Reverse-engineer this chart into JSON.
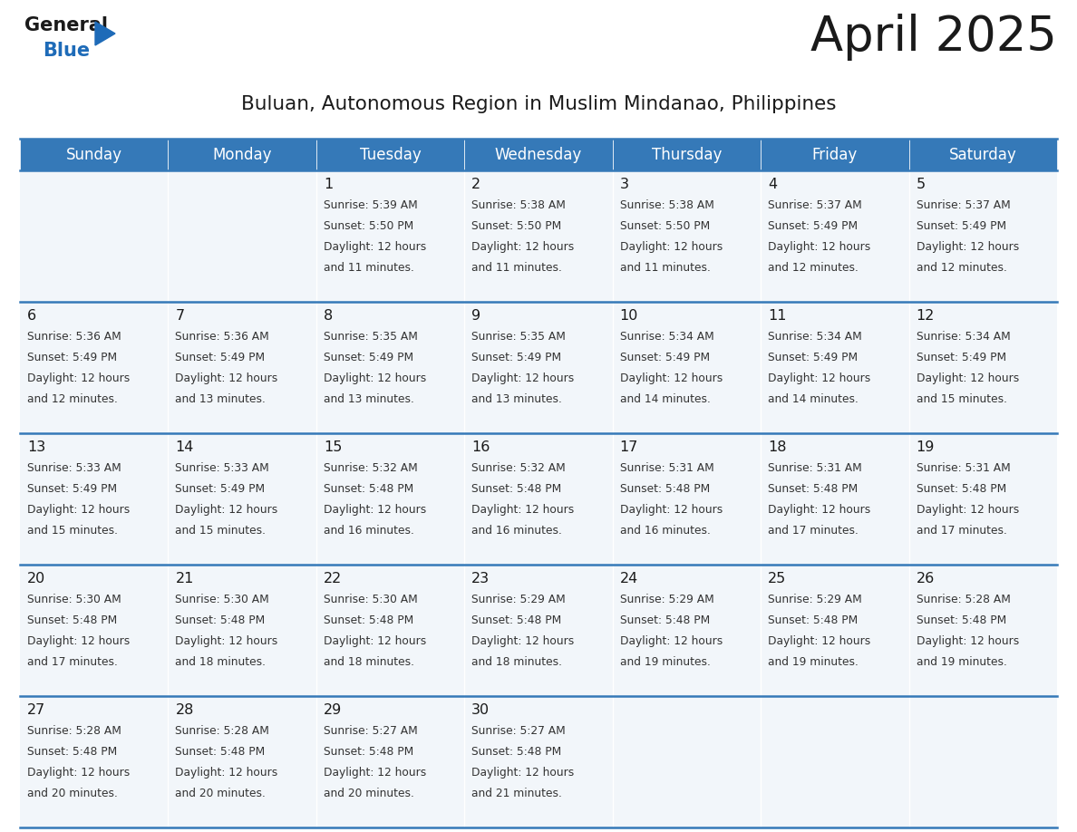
{
  "title": "April 2025",
  "subtitle": "Buluan, Autonomous Region in Muslim Mindanao, Philippines",
  "days_of_week": [
    "Sunday",
    "Monday",
    "Tuesday",
    "Wednesday",
    "Thursday",
    "Friday",
    "Saturday"
  ],
  "header_bg_color": "#3579b8",
  "header_text_color": "#ffffff",
  "cell_bg": "#f2f6fa",
  "row_line_color": "#3579b8",
  "title_color": "#1a1a1a",
  "subtitle_color": "#1a1a1a",
  "day_number_color": "#1a1a1a",
  "cell_text_color": "#333333",
  "logo_general_color": "#1a1a1a",
  "logo_blue_color": "#1e6bb8",
  "calendar_data": [
    {
      "day": 1,
      "col": 2,
      "row": 0,
      "sunrise": "5:39 AM",
      "sunset": "5:50 PM",
      "daylight_hours": 12,
      "daylight_minutes": 11
    },
    {
      "day": 2,
      "col": 3,
      "row": 0,
      "sunrise": "5:38 AM",
      "sunset": "5:50 PM",
      "daylight_hours": 12,
      "daylight_minutes": 11
    },
    {
      "day": 3,
      "col": 4,
      "row": 0,
      "sunrise": "5:38 AM",
      "sunset": "5:50 PM",
      "daylight_hours": 12,
      "daylight_minutes": 11
    },
    {
      "day": 4,
      "col": 5,
      "row": 0,
      "sunrise": "5:37 AM",
      "sunset": "5:49 PM",
      "daylight_hours": 12,
      "daylight_minutes": 12
    },
    {
      "day": 5,
      "col": 6,
      "row": 0,
      "sunrise": "5:37 AM",
      "sunset": "5:49 PM",
      "daylight_hours": 12,
      "daylight_minutes": 12
    },
    {
      "day": 6,
      "col": 0,
      "row": 1,
      "sunrise": "5:36 AM",
      "sunset": "5:49 PM",
      "daylight_hours": 12,
      "daylight_minutes": 12
    },
    {
      "day": 7,
      "col": 1,
      "row": 1,
      "sunrise": "5:36 AM",
      "sunset": "5:49 PM",
      "daylight_hours": 12,
      "daylight_minutes": 13
    },
    {
      "day": 8,
      "col": 2,
      "row": 1,
      "sunrise": "5:35 AM",
      "sunset": "5:49 PM",
      "daylight_hours": 12,
      "daylight_minutes": 13
    },
    {
      "day": 9,
      "col": 3,
      "row": 1,
      "sunrise": "5:35 AM",
      "sunset": "5:49 PM",
      "daylight_hours": 12,
      "daylight_minutes": 13
    },
    {
      "day": 10,
      "col": 4,
      "row": 1,
      "sunrise": "5:34 AM",
      "sunset": "5:49 PM",
      "daylight_hours": 12,
      "daylight_minutes": 14
    },
    {
      "day": 11,
      "col": 5,
      "row": 1,
      "sunrise": "5:34 AM",
      "sunset": "5:49 PM",
      "daylight_hours": 12,
      "daylight_minutes": 14
    },
    {
      "day": 12,
      "col": 6,
      "row": 1,
      "sunrise": "5:34 AM",
      "sunset": "5:49 PM",
      "daylight_hours": 12,
      "daylight_minutes": 15
    },
    {
      "day": 13,
      "col": 0,
      "row": 2,
      "sunrise": "5:33 AM",
      "sunset": "5:49 PM",
      "daylight_hours": 12,
      "daylight_minutes": 15
    },
    {
      "day": 14,
      "col": 1,
      "row": 2,
      "sunrise": "5:33 AM",
      "sunset": "5:49 PM",
      "daylight_hours": 12,
      "daylight_minutes": 15
    },
    {
      "day": 15,
      "col": 2,
      "row": 2,
      "sunrise": "5:32 AM",
      "sunset": "5:48 PM",
      "daylight_hours": 12,
      "daylight_minutes": 16
    },
    {
      "day": 16,
      "col": 3,
      "row": 2,
      "sunrise": "5:32 AM",
      "sunset": "5:48 PM",
      "daylight_hours": 12,
      "daylight_minutes": 16
    },
    {
      "day": 17,
      "col": 4,
      "row": 2,
      "sunrise": "5:31 AM",
      "sunset": "5:48 PM",
      "daylight_hours": 12,
      "daylight_minutes": 16
    },
    {
      "day": 18,
      "col": 5,
      "row": 2,
      "sunrise": "5:31 AM",
      "sunset": "5:48 PM",
      "daylight_hours": 12,
      "daylight_minutes": 17
    },
    {
      "day": 19,
      "col": 6,
      "row": 2,
      "sunrise": "5:31 AM",
      "sunset": "5:48 PM",
      "daylight_hours": 12,
      "daylight_minutes": 17
    },
    {
      "day": 20,
      "col": 0,
      "row": 3,
      "sunrise": "5:30 AM",
      "sunset": "5:48 PM",
      "daylight_hours": 12,
      "daylight_minutes": 17
    },
    {
      "day": 21,
      "col": 1,
      "row": 3,
      "sunrise": "5:30 AM",
      "sunset": "5:48 PM",
      "daylight_hours": 12,
      "daylight_minutes": 18
    },
    {
      "day": 22,
      "col": 2,
      "row": 3,
      "sunrise": "5:30 AM",
      "sunset": "5:48 PM",
      "daylight_hours": 12,
      "daylight_minutes": 18
    },
    {
      "day": 23,
      "col": 3,
      "row": 3,
      "sunrise": "5:29 AM",
      "sunset": "5:48 PM",
      "daylight_hours": 12,
      "daylight_minutes": 18
    },
    {
      "day": 24,
      "col": 4,
      "row": 3,
      "sunrise": "5:29 AM",
      "sunset": "5:48 PM",
      "daylight_hours": 12,
      "daylight_minutes": 19
    },
    {
      "day": 25,
      "col": 5,
      "row": 3,
      "sunrise": "5:29 AM",
      "sunset": "5:48 PM",
      "daylight_hours": 12,
      "daylight_minutes": 19
    },
    {
      "day": 26,
      "col": 6,
      "row": 3,
      "sunrise": "5:28 AM",
      "sunset": "5:48 PM",
      "daylight_hours": 12,
      "daylight_minutes": 19
    },
    {
      "day": 27,
      "col": 0,
      "row": 4,
      "sunrise": "5:28 AM",
      "sunset": "5:48 PM",
      "daylight_hours": 12,
      "daylight_minutes": 20
    },
    {
      "day": 28,
      "col": 1,
      "row": 4,
      "sunrise": "5:28 AM",
      "sunset": "5:48 PM",
      "daylight_hours": 12,
      "daylight_minutes": 20
    },
    {
      "day": 29,
      "col": 2,
      "row": 4,
      "sunrise": "5:27 AM",
      "sunset": "5:48 PM",
      "daylight_hours": 12,
      "daylight_minutes": 20
    },
    {
      "day": 30,
      "col": 3,
      "row": 4,
      "sunrise": "5:27 AM",
      "sunset": "5:48 PM",
      "daylight_hours": 12,
      "daylight_minutes": 21
    }
  ]
}
